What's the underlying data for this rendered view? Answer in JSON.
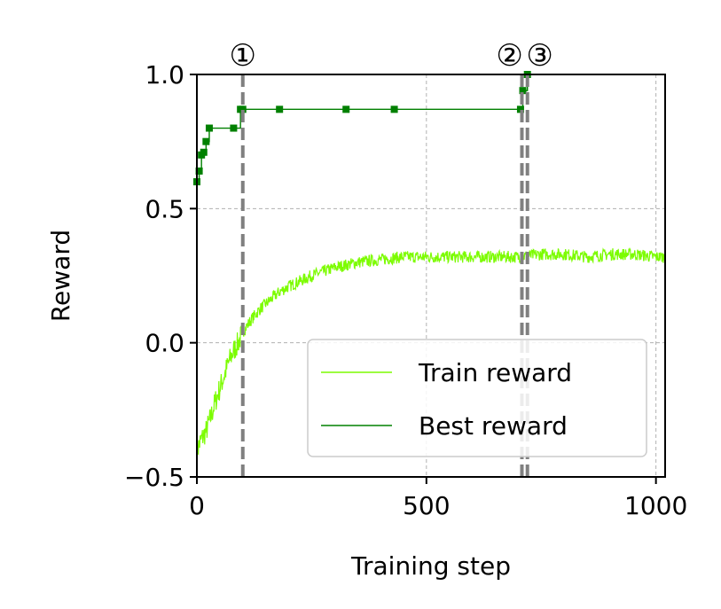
{
  "chart_data": {
    "type": "line",
    "xlabel": "Training step",
    "ylabel": "Reward",
    "xlim": [
      0,
      1020
    ],
    "ylim": [
      -0.5,
      1.0
    ],
    "xticks": [
      0,
      500,
      1000
    ],
    "xtick_labels": [
      "0",
      "500",
      "1000"
    ],
    "yticks": [
      -0.5,
      0.0,
      0.5,
      1.0
    ],
    "ytick_labels": [
      "−0.5",
      "0.0",
      "0.5",
      "1.0"
    ],
    "grid": true,
    "legend_position": "bottom-right",
    "series": [
      {
        "name": "Train reward",
        "color": "#7cfc00",
        "x": [
          0,
          10,
          20,
          30,
          40,
          50,
          60,
          70,
          80,
          90,
          100,
          120,
          140,
          160,
          180,
          200,
          250,
          300,
          350,
          400,
          450,
          500,
          550,
          600,
          650,
          700,
          750,
          800,
          850,
          900,
          950,
          1000,
          1020
        ],
        "values": [
          -0.4,
          -0.36,
          -0.33,
          -0.28,
          -0.22,
          -0.17,
          -0.12,
          -0.07,
          -0.03,
          0.0,
          0.04,
          0.09,
          0.13,
          0.16,
          0.19,
          0.21,
          0.25,
          0.28,
          0.3,
          0.31,
          0.32,
          0.32,
          0.32,
          0.32,
          0.32,
          0.32,
          0.33,
          0.33,
          0.32,
          0.33,
          0.33,
          0.32,
          0.32
        ]
      },
      {
        "name": "Best reward",
        "color": "#008000",
        "x": [
          0,
          5,
          10,
          15,
          20,
          27,
          80,
          95,
          100,
          180,
          325,
          430,
          705,
          710,
          720
        ],
        "values": [
          0.6,
          0.64,
          0.7,
          0.71,
          0.75,
          0.8,
          0.8,
          0.87,
          0.87,
          0.87,
          0.87,
          0.87,
          0.87,
          0.94,
          1.0
        ]
      }
    ],
    "vlines": [
      {
        "x": 100,
        "label": "①"
      },
      {
        "x": 708,
        "label": "②"
      },
      {
        "x": 720,
        "label": "③"
      }
    ]
  }
}
